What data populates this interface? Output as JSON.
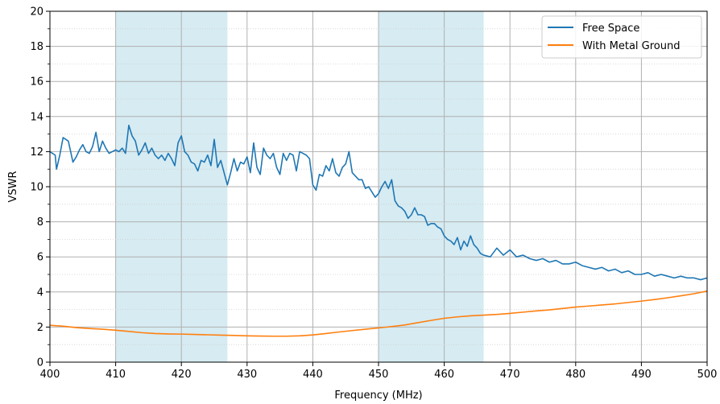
{
  "chart_data": {
    "type": "line",
    "xlabel": "Frequency (MHz)",
    "ylabel": "VSWR",
    "xlim": [
      400,
      500
    ],
    "ylim": [
      0,
      20
    ],
    "x_ticks": [
      400,
      410,
      420,
      430,
      440,
      450,
      460,
      470,
      480,
      490,
      500
    ],
    "y_ticks": [
      0,
      2,
      4,
      6,
      8,
      10,
      12,
      14,
      16,
      18,
      20
    ],
    "grid": true,
    "legend_position": "top-right",
    "shaded_bands": [
      {
        "x_start": 410,
        "x_end": 427,
        "color": "#add8e6"
      },
      {
        "x_start": 450,
        "x_end": 466,
        "color": "#add8e6"
      }
    ],
    "series": [
      {
        "name": "Free Space",
        "color": "#1f77b4",
        "x": [
          400,
          400.8,
          401.0,
          401.5,
          402.0,
          402.8,
          403.5,
          404.0,
          404.5,
          405.0,
          405.5,
          406.0,
          406.5,
          407.0,
          407.5,
          408.0,
          408.5,
          409.0,
          410.0,
          410.5,
          411.0,
          411.5,
          412.0,
          412.5,
          413.0,
          413.5,
          414.0,
          414.5,
          415.0,
          415.5,
          416.0,
          416.5,
          417.0,
          417.5,
          418.0,
          418.5,
          419.0,
          419.5,
          420.0,
          420.5,
          421.0,
          421.5,
          422.0,
          422.5,
          423.0,
          423.5,
          424.0,
          424.5,
          425.0,
          425.5,
          426.0,
          426.5,
          427.0,
          427.5,
          428.0,
          428.5,
          429.0,
          429.5,
          430.0,
          430.5,
          431.0,
          431.5,
          432.0,
          432.5,
          433.0,
          433.5,
          434.0,
          434.5,
          435.0,
          435.5,
          436.0,
          436.5,
          437.0,
          437.5,
          438.0,
          438.5,
          439.0,
          439.5,
          440.0,
          440.5,
          441.0,
          441.5,
          442.0,
          442.5,
          443.0,
          443.5,
          444.0,
          444.5,
          445.0,
          445.5,
          446.0,
          446.5,
          447.0,
          447.5,
          448.0,
          448.5,
          449.0,
          449.5,
          450.0,
          450.5,
          451.0,
          451.5,
          452.0,
          452.5,
          453.0,
          453.5,
          454.0,
          454.5,
          455.0,
          455.5,
          456.0,
          456.5,
          457.0,
          457.5,
          458.0,
          458.5,
          459.0,
          459.5,
          460.0,
          460.5,
          461.0,
          461.5,
          462.0,
          462.5,
          463.0,
          463.5,
          464.0,
          464.5,
          465.0,
          465.5,
          466.0,
          467.0,
          468.0,
          469.0,
          470.0,
          471.0,
          472.0,
          473.0,
          474.0,
          475.0,
          476.0,
          477.0,
          478.0,
          479.0,
          480.0,
          481.0,
          482.0,
          483.0,
          484.0,
          485.0,
          486.0,
          487.0,
          488.0,
          489.0,
          490.0,
          491.0,
          492.0,
          493.0,
          494.0,
          495.0,
          496.0,
          497.0,
          498.0,
          499.0,
          500.0
        ],
        "values": [
          12.0,
          11.8,
          11.0,
          11.8,
          12.8,
          12.6,
          11.4,
          11.7,
          12.1,
          12.4,
          12.0,
          11.9,
          12.3,
          13.1,
          12.0,
          12.6,
          12.2,
          11.9,
          12.1,
          12.0,
          12.2,
          11.9,
          13.5,
          12.9,
          12.6,
          11.8,
          12.1,
          12.5,
          11.9,
          12.2,
          11.8,
          11.6,
          11.8,
          11.5,
          11.9,
          11.6,
          11.2,
          12.5,
          12.9,
          12.0,
          11.8,
          11.4,
          11.3,
          10.9,
          11.5,
          11.4,
          11.8,
          11.2,
          12.7,
          11.1,
          11.5,
          10.8,
          10.1,
          10.8,
          11.6,
          10.9,
          11.4,
          11.3,
          11.7,
          10.8,
          12.5,
          11.1,
          10.7,
          12.2,
          11.8,
          11.6,
          11.9,
          11.1,
          10.7,
          11.9,
          11.5,
          11.9,
          11.8,
          10.9,
          12.0,
          11.9,
          11.8,
          11.6,
          10.1,
          9.8,
          10.7,
          10.6,
          11.2,
          10.9,
          11.6,
          10.8,
          10.6,
          11.1,
          11.3,
          12.0,
          10.8,
          10.6,
          10.4,
          10.4,
          9.9,
          10.0,
          9.7,
          9.4,
          9.6,
          10.0,
          10.3,
          9.9,
          10.4,
          9.2,
          8.9,
          8.8,
          8.6,
          8.2,
          8.4,
          8.8,
          8.4,
          8.4,
          8.3,
          7.8,
          7.9,
          7.9,
          7.7,
          7.6,
          7.2,
          7.0,
          6.9,
          6.7,
          7.1,
          6.4,
          6.9,
          6.6,
          7.2,
          6.7,
          6.5,
          6.2,
          6.1,
          6.0,
          6.5,
          6.1,
          6.4,
          6.0,
          6.1,
          5.9,
          5.8,
          5.9,
          5.7,
          5.8,
          5.6,
          5.6,
          5.7,
          5.5,
          5.4,
          5.3,
          5.4,
          5.2,
          5.3,
          5.1,
          5.2,
          5.0,
          5.0,
          5.1,
          4.9,
          5.0,
          4.9,
          4.8,
          4.9,
          4.8,
          4.8,
          4.7,
          4.8
        ]
      },
      {
        "name": "With Metal Ground",
        "color": "#ff7f0e",
        "x": [
          400,
          402,
          404,
          406,
          408,
          410,
          412,
          414,
          416,
          418,
          420,
          422,
          424,
          426,
          428,
          430,
          432,
          434,
          436,
          438,
          440,
          442,
          444,
          446,
          448,
          450,
          452,
          454,
          456,
          458,
          460,
          462,
          464,
          466,
          468,
          470,
          472,
          474,
          476,
          478,
          480,
          482,
          484,
          486,
          488,
          490,
          492,
          494,
          496,
          498,
          500
        ],
        "values": [
          2.1,
          2.05,
          1.97,
          1.92,
          1.88,
          1.82,
          1.75,
          1.68,
          1.63,
          1.61,
          1.6,
          1.58,
          1.56,
          1.54,
          1.52,
          1.5,
          1.49,
          1.48,
          1.48,
          1.5,
          1.55,
          1.63,
          1.72,
          1.8,
          1.88,
          1.95,
          2.03,
          2.12,
          2.25,
          2.38,
          2.5,
          2.58,
          2.64,
          2.68,
          2.72,
          2.78,
          2.85,
          2.92,
          2.98,
          3.06,
          3.14,
          3.2,
          3.26,
          3.32,
          3.4,
          3.48,
          3.57,
          3.67,
          3.78,
          3.9,
          4.05
        ]
      }
    ]
  }
}
